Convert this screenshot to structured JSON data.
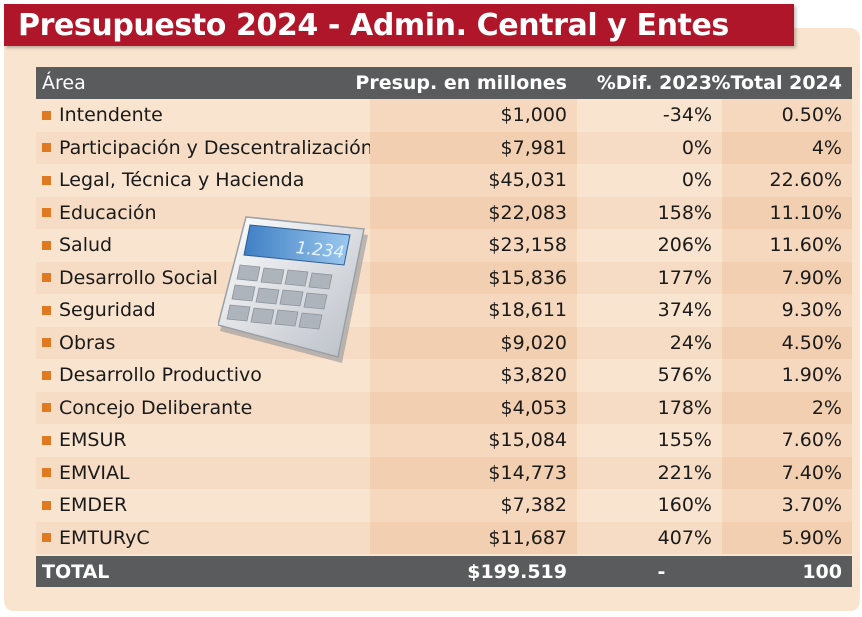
{
  "title": "Presupuesto 2024 - Admin. Central y Entes",
  "calculator": {
    "display": "1.234",
    "icon": "calculator-icon"
  },
  "colors": {
    "banner": "#b0162a",
    "header": "#5a5b5d",
    "bullet": "#e07a22",
    "panel": "#f9e4cf"
  },
  "chart_data": {
    "type": "table",
    "title": "Presupuesto 2024 - Admin. Central y Entes",
    "columns": [
      "Área",
      "Presup. en millones",
      "%Dif. 2023",
      "%Total 2024"
    ],
    "rows": [
      {
        "area": "Intendente",
        "presupuesto": "$1,000",
        "dif": "-34%",
        "total": "0.50%"
      },
      {
        "area": "Participación y Descentralización",
        "presupuesto": "$7,981",
        "dif": "0%",
        "total": "4%"
      },
      {
        "area": "Legal, Técnica y Hacienda",
        "presupuesto": "$45,031",
        "dif": "0%",
        "total": "22.60%"
      },
      {
        "area": "Educación",
        "presupuesto": "$22,083",
        "dif": "158%",
        "total": "11.10%"
      },
      {
        "area": "Salud",
        "presupuesto": "$23,158",
        "dif": "206%",
        "total": "11.60%"
      },
      {
        "area": "Desarrollo Social",
        "presupuesto": "$15,836",
        "dif": "177%",
        "total": "7.90%"
      },
      {
        "area": "Seguridad",
        "presupuesto": "$18,611",
        "dif": "374%",
        "total": "9.30%"
      },
      {
        "area": "Obras",
        "presupuesto": "$9,020",
        "dif": "24%",
        "total": "4.50%"
      },
      {
        "area": "Desarrollo Productivo",
        "presupuesto": "$3,820",
        "dif": "576%",
        "total": "1.90%"
      },
      {
        "area": "Concejo Deliberante",
        "presupuesto": "$4,053",
        "dif": "178%",
        "total": "2%"
      },
      {
        "area": "EMSUR",
        "presupuesto": "$15,084",
        "dif": "155%",
        "total": "7.60%"
      },
      {
        "area": "EMVIAL",
        "presupuesto": "$14,773",
        "dif": "221%",
        "total": "7.40%"
      },
      {
        "area": "EMDER",
        "presupuesto": "$7,382",
        "dif": "160%",
        "total": "3.70%"
      },
      {
        "area": "EMTURyC",
        "presupuesto": "$11,687",
        "dif": "407%",
        "total": "5.90%"
      }
    ],
    "total_row": {
      "area": "TOTAL",
      "presupuesto": "$199.519",
      "dif": "-",
      "total": "100"
    }
  }
}
